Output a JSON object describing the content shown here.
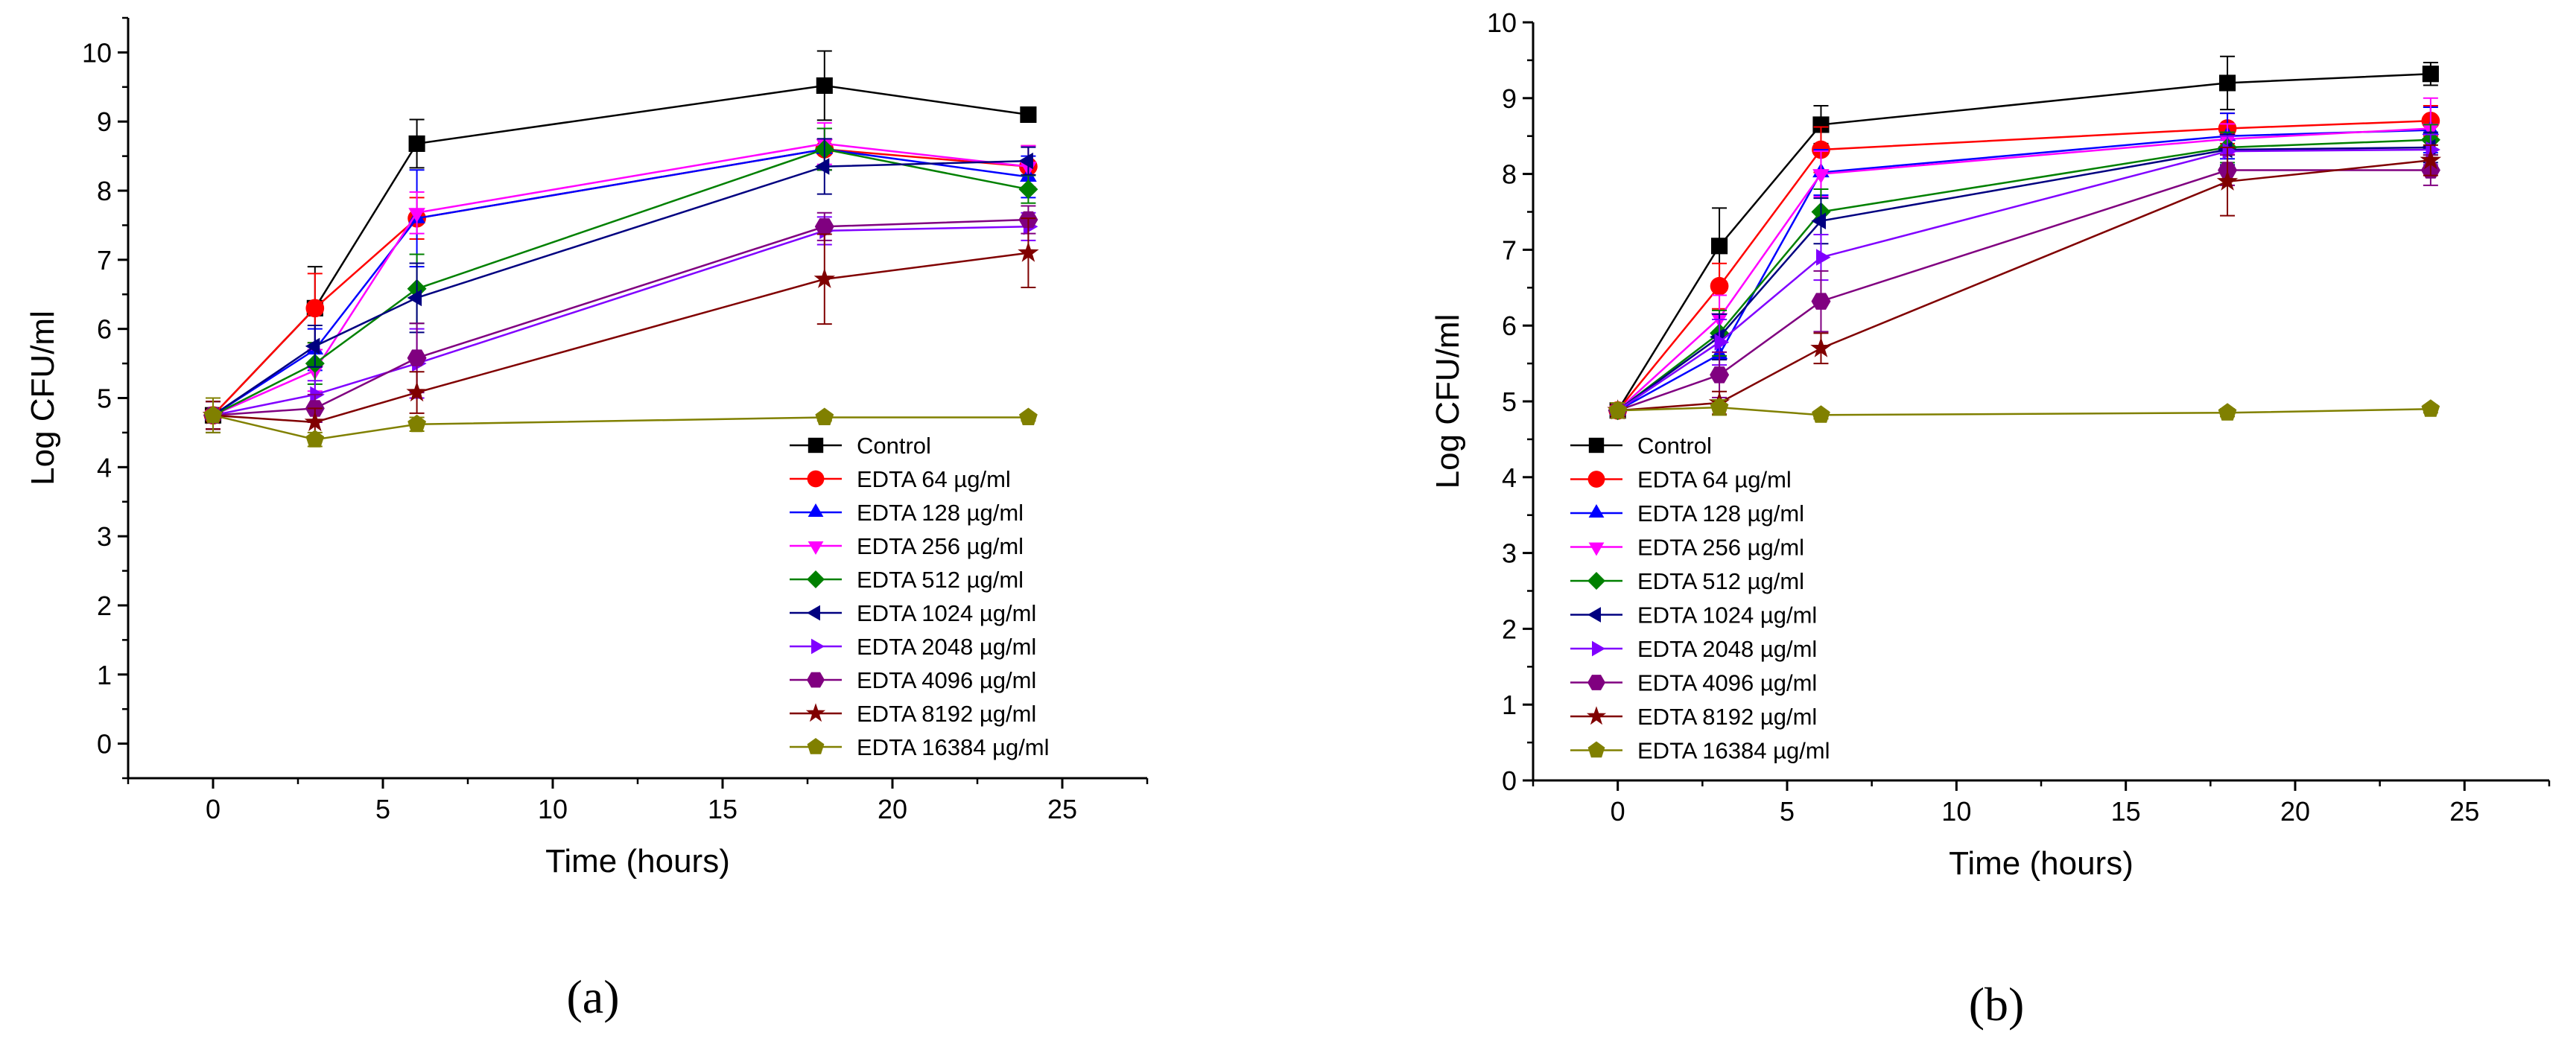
{
  "colors": {
    "Control": "#000000",
    "EDTA 64 µg/ml": "#ff0000",
    "EDTA 128 µg/ml": "#0000ff",
    "EDTA 256 µg/ml": "#ff00ff",
    "EDTA 512 µg/ml": "#008000",
    "EDTA 1024 µg/ml": "#000080",
    "EDTA 2048 µg/ml": "#8000ff",
    "EDTA 4096 µg/ml": "#800080",
    "EDTA 8192 µg/ml": "#800000",
    "EDTA 16384 µg/ml": "#808000"
  },
  "markers": {
    "Control": "square",
    "EDTA 64 µg/ml": "circle",
    "EDTA 128 µg/ml": "triangle-up",
    "EDTA 256 µg/ml": "triangle-down",
    "EDTA 512 µg/ml": "diamond",
    "EDTA 1024 µg/ml": "triangle-left",
    "EDTA 2048 µg/ml": "triangle-right",
    "EDTA 4096 µg/ml": "hexagon",
    "EDTA 8192 µg/ml": "star",
    "EDTA 16384 µg/ml": "pentagon"
  },
  "chart_data": [
    {
      "type": "line",
      "panel_label": "(a)",
      "xlabel": "Time (hours)",
      "ylabel": "Log CFU/ml",
      "xlim": [
        -2.5,
        27.5
      ],
      "ylim": [
        -0.5,
        10.5
      ],
      "xticks": [
        0,
        5,
        10,
        15,
        20,
        25
      ],
      "yticks": [
        0,
        1,
        2,
        3,
        4,
        5,
        6,
        7,
        8,
        9,
        10
      ],
      "legend_position": "bottom-right",
      "x": [
        0,
        3,
        6,
        18,
        24
      ],
      "series": [
        {
          "name": "Control",
          "values": [
            4.75,
            6.3,
            8.68,
            9.52,
            9.1
          ],
          "errors": [
            0.25,
            0.6,
            0.35,
            0.5,
            0.1
          ]
        },
        {
          "name": "EDTA 64 µg/ml",
          "values": [
            4.75,
            6.3,
            7.6,
            8.6,
            8.35
          ],
          "errors": [
            0.2,
            0.5,
            0.3,
            0.3,
            0.3
          ]
        },
        {
          "name": "EDTA 128 µg/ml",
          "values": [
            4.75,
            5.7,
            7.6,
            8.6,
            8.2
          ],
          "errors": [
            0.2,
            0.3,
            0.7,
            0.3,
            0.3
          ]
        },
        {
          "name": "EDTA 256 µg/ml",
          "values": [
            4.75,
            5.4,
            7.68,
            8.68,
            8.35
          ],
          "errors": [
            0.2,
            0.3,
            0.3,
            0.3,
            0.3
          ]
        },
        {
          "name": "EDTA 512 µg/ml",
          "values": [
            4.75,
            5.5,
            6.58,
            8.6,
            8.02
          ],
          "errors": [
            0.2,
            0.3,
            0.5,
            0.3,
            0.2
          ]
        },
        {
          "name": "EDTA 1024 µg/ml",
          "values": [
            4.75,
            5.75,
            6.45,
            8.35,
            8.43
          ],
          "errors": [
            0.2,
            0.3,
            0.5,
            0.4,
            0.2
          ]
        },
        {
          "name": "EDTA 2048 µg/ml",
          "values": [
            4.75,
            5.05,
            5.5,
            7.42,
            7.48
          ],
          "errors": [
            0.2,
            0.2,
            0.5,
            0.2,
            0.2
          ]
        },
        {
          "name": "EDTA 4096 µg/ml",
          "values": [
            4.75,
            4.85,
            5.58,
            7.48,
            7.58
          ],
          "errors": [
            0.2,
            0.2,
            0.5,
            0.2,
            0.2
          ]
        },
        {
          "name": "EDTA 8192 µg/ml",
          "values": [
            4.75,
            4.65,
            5.08,
            6.72,
            7.1
          ],
          "errors": [
            0.2,
            0.2,
            0.3,
            0.65,
            0.5
          ]
        },
        {
          "name": "EDTA 16384 µg/ml",
          "values": [
            4.75,
            4.4,
            4.62,
            4.72,
            4.72
          ],
          "errors": [
            0.25,
            0.1,
            0.1,
            0.05,
            0.05
          ]
        }
      ]
    },
    {
      "type": "line",
      "panel_label": "(b)",
      "xlabel": "Time (hours)",
      "ylabel": "Log CFU/ml",
      "xlim": [
        -2.5,
        27.5
      ],
      "ylim": [
        0,
        10
      ],
      "xticks": [
        0,
        5,
        10,
        15,
        20,
        25
      ],
      "yticks": [
        0,
        1,
        2,
        3,
        4,
        5,
        6,
        7,
        8,
        9,
        10
      ],
      "legend_position": "bottom-left",
      "x": [
        0,
        3,
        6,
        18,
        24
      ],
      "series": [
        {
          "name": "Control",
          "values": [
            4.88,
            7.05,
            8.65,
            9.2,
            9.32
          ],
          "errors": [
            0.1,
            0.5,
            0.25,
            0.35,
            0.15
          ]
        },
        {
          "name": "EDTA 64 µg/ml",
          "values": [
            4.88,
            6.52,
            8.32,
            8.6,
            8.7
          ],
          "errors": [
            0.1,
            0.3,
            0.3,
            0.2,
            0.2
          ]
        },
        {
          "name": "EDTA 128 µg/ml",
          "values": [
            4.88,
            5.62,
            8.02,
            8.5,
            8.58
          ],
          "errors": [
            0.1,
            0.3,
            0.3,
            0.3,
            0.3
          ]
        },
        {
          "name": "EDTA 256 µg/ml",
          "values": [
            4.88,
            6.1,
            8.0,
            8.46,
            8.6
          ],
          "errors": [
            0.1,
            0.3,
            0.3,
            0.2,
            0.4
          ]
        },
        {
          "name": "EDTA 512 µg/ml",
          "values": [
            4.88,
            5.9,
            7.5,
            8.35,
            8.45
          ],
          "errors": [
            0.1,
            0.3,
            0.3,
            0.2,
            0.2
          ]
        },
        {
          "name": "EDTA 1024 µg/ml",
          "values": [
            4.88,
            5.85,
            7.38,
            8.32,
            8.35
          ],
          "errors": [
            0.1,
            0.3,
            0.3,
            0.2,
            0.2
          ]
        },
        {
          "name": "EDTA 2048 µg/ml",
          "values": [
            4.88,
            5.78,
            6.9,
            8.3,
            8.32
          ],
          "errors": [
            0.1,
            0.3,
            0.3,
            0.2,
            0.2
          ]
        },
        {
          "name": "EDTA 4096 µg/ml",
          "values": [
            4.88,
            5.35,
            6.32,
            8.05,
            8.05
          ],
          "errors": [
            0.1,
            0.3,
            0.4,
            0.2,
            0.2
          ]
        },
        {
          "name": "EDTA 8192 µg/ml",
          "values": [
            4.88,
            4.98,
            5.7,
            7.9,
            8.18
          ],
          "errors": [
            0.1,
            0.15,
            0.2,
            0.45,
            0.2
          ]
        },
        {
          "name": "EDTA 16384 µg/ml",
          "values": [
            4.88,
            4.92,
            4.82,
            4.85,
            4.9
          ],
          "errors": [
            0.1,
            0.1,
            0.05,
            0.05,
            0.05
          ]
        }
      ]
    }
  ]
}
